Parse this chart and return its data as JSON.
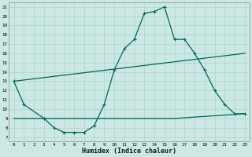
{
  "bg_color": "#cce8e4",
  "grid_color": "#aad4cc",
  "line_color": "#006655",
  "xlabel": "Humidex (Indice chaleur)",
  "xlim": [
    -0.5,
    23.5
  ],
  "ylim": [
    6.5,
    21.5
  ],
  "xticks": [
    0,
    1,
    2,
    3,
    4,
    5,
    6,
    7,
    8,
    9,
    10,
    11,
    12,
    13,
    14,
    15,
    16,
    17,
    18,
    19,
    20,
    21,
    22,
    23
  ],
  "yticks": [
    7,
    8,
    9,
    10,
    11,
    12,
    13,
    14,
    15,
    16,
    17,
    18,
    19,
    20,
    21
  ],
  "curve1_x": [
    0,
    1,
    3,
    4,
    5,
    6,
    7,
    8,
    9,
    10,
    11,
    12,
    13,
    14,
    15,
    16,
    17,
    18,
    19,
    20,
    21,
    22,
    23
  ],
  "curve1_y": [
    13,
    10.5,
    9,
    8,
    7.5,
    7.5,
    7.5,
    8.2,
    10.5,
    14.2,
    16.5,
    17.5,
    20.3,
    20.5,
    21,
    17.5,
    17.5,
    16,
    14.2,
    12,
    10.5,
    9.5,
    9.5
  ],
  "curve2_x": [
    0,
    23
  ],
  "curve2_y": [
    13,
    16
  ],
  "curve3_x": [
    0,
    16,
    23
  ],
  "curve3_y": [
    9,
    9,
    9.5
  ]
}
